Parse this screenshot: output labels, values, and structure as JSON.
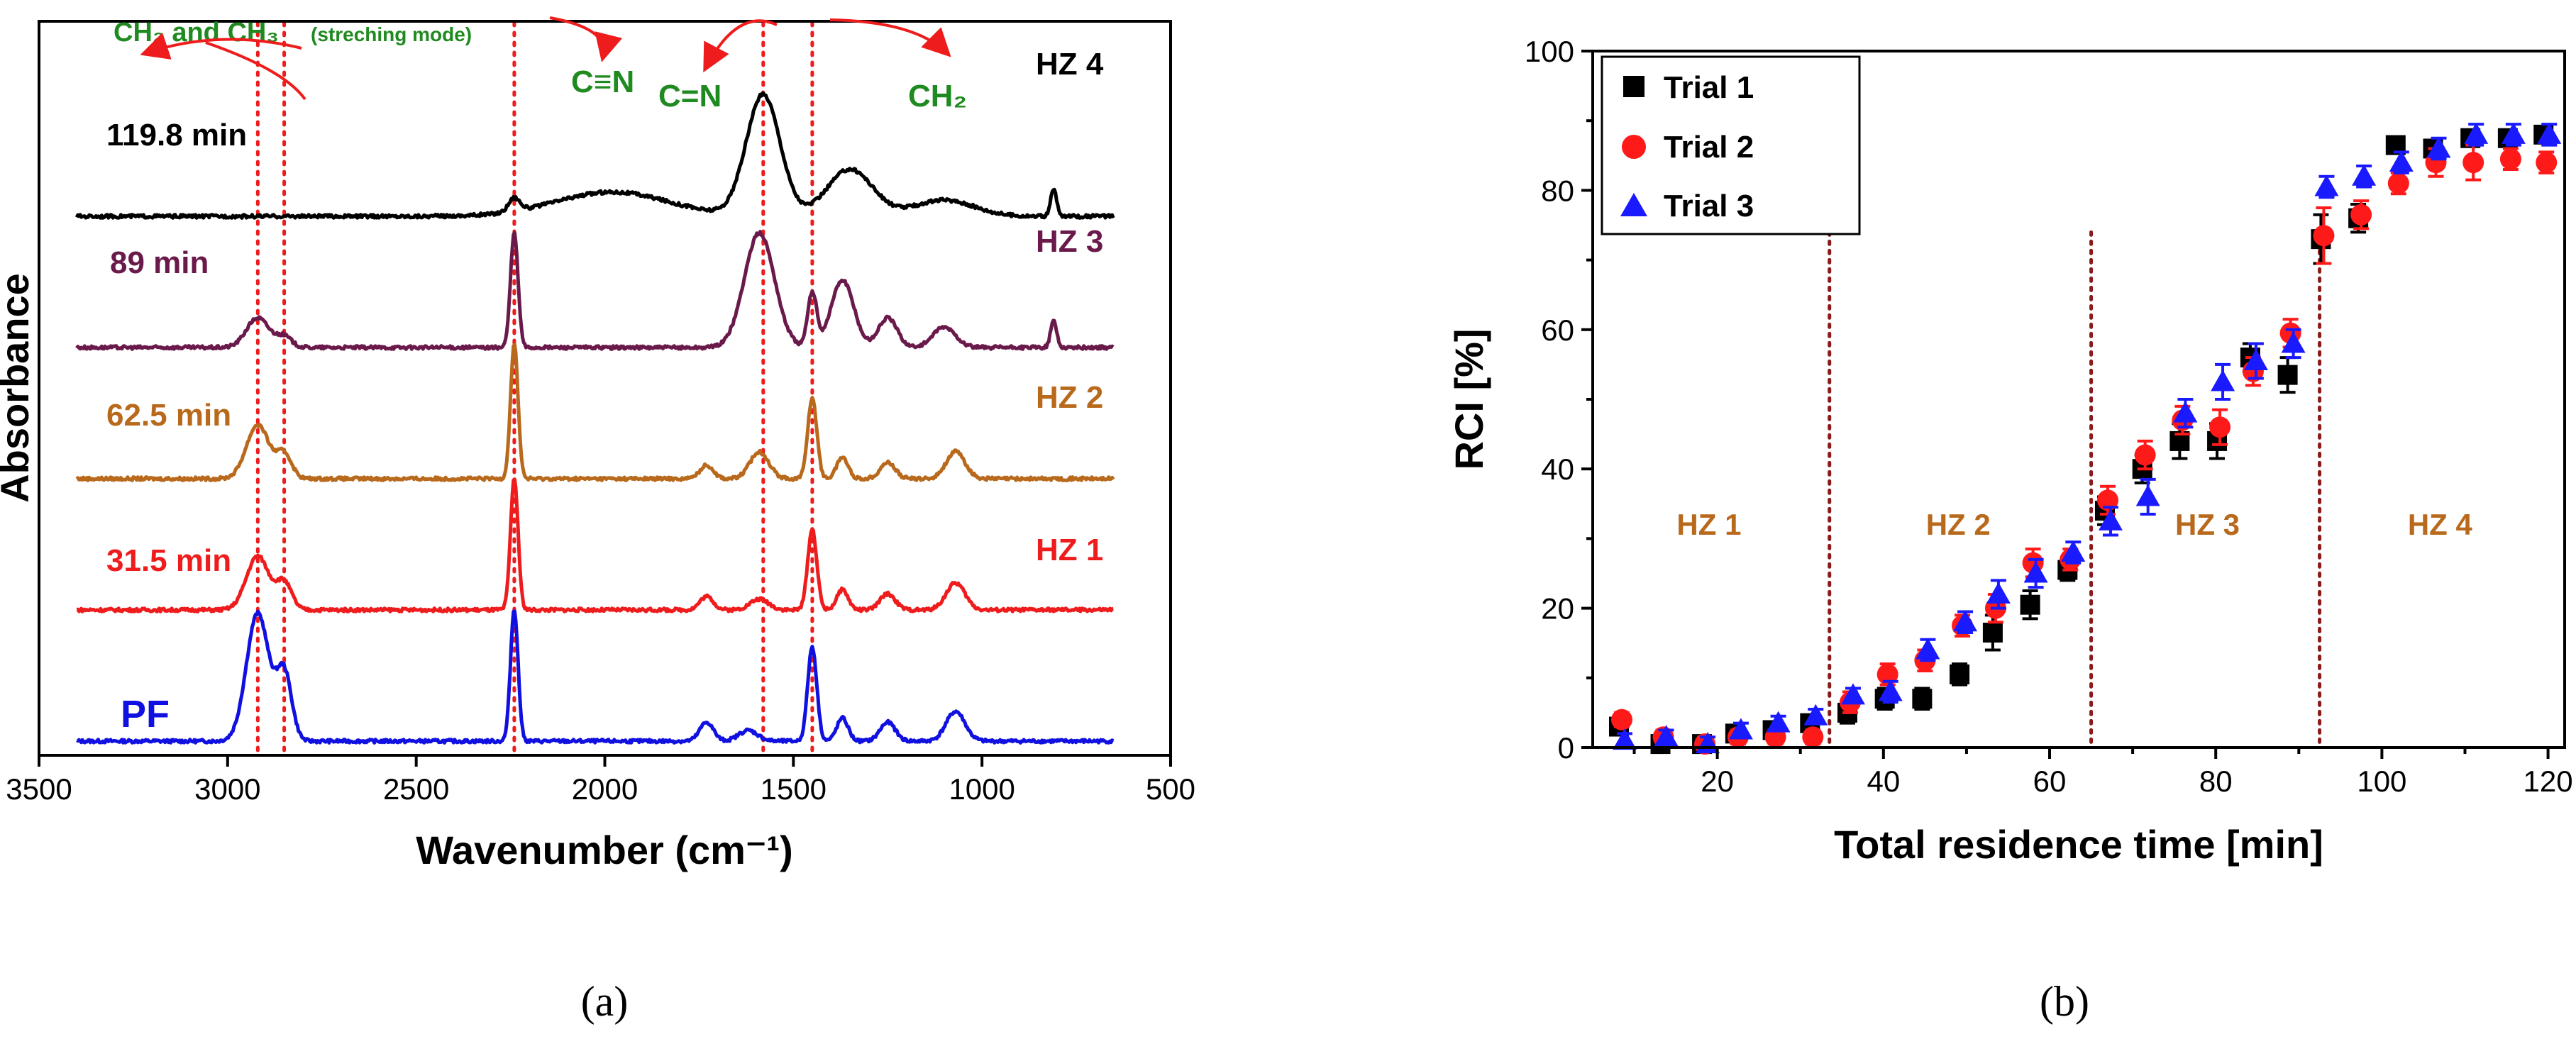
{
  "chart_data": [
    {
      "panel": "(a)",
      "type": "line",
      "xlabel": "Wavenumber (cm⁻¹)",
      "ylabel": "Absorbance",
      "xlim": [
        3500,
        500
      ],
      "x_ticks": [
        "3500",
        "3000",
        "2500",
        "2000",
        "1500",
        "1000",
        "500"
      ],
      "reference_lines_cm1": [
        2920,
        2850,
        2240,
        1580,
        1450
      ],
      "annotations": {
        "stretch_main": "CH₂ and CH₃",
        "stretch_mode": "(streching mode)",
        "cn_triple": "C≡N",
        "cn_double": "C=N",
        "ch2": "CH₂"
      },
      "series": [
        {
          "name": "PF",
          "label": "PF",
          "time_label": "",
          "color": "#1010e0",
          "baseline": 0.0,
          "peaks": [
            [
              2920,
              0.95,
              30
            ],
            [
              2850,
              0.5,
              20
            ],
            [
              2240,
              0.98,
              10
            ],
            [
              1730,
              0.14,
              18
            ],
            [
              1620,
              0.08,
              25
            ],
            [
              1450,
              0.7,
              12
            ],
            [
              1370,
              0.17,
              15
            ],
            [
              1250,
              0.14,
              20
            ],
            [
              1070,
              0.22,
              25
            ]
          ]
        },
        {
          "name": "HZ 1",
          "label": "HZ 1",
          "time_label": "31.5 min",
          "color": "#ee1c1c",
          "baseline": 1.0,
          "peaks": [
            [
              2920,
              0.4,
              30
            ],
            [
              2850,
              0.2,
              20
            ],
            [
              2240,
              0.98,
              10
            ],
            [
              1730,
              0.1,
              18
            ],
            [
              1590,
              0.08,
              25
            ],
            [
              1450,
              0.6,
              12
            ],
            [
              1370,
              0.15,
              15
            ],
            [
              1250,
              0.12,
              20
            ],
            [
              1070,
              0.2,
              25
            ]
          ]
        },
        {
          "name": "HZ 2",
          "label": "HZ 2",
          "time_label": "62.5 min",
          "color": "#b8691c",
          "baseline": 2.0,
          "peaks": [
            [
              2920,
              0.4,
              30
            ],
            [
              2850,
              0.18,
              20
            ],
            [
              2240,
              1.0,
              10
            ],
            [
              1730,
              0.1,
              18
            ],
            [
              1590,
              0.2,
              25
            ],
            [
              1450,
              0.6,
              12
            ],
            [
              1370,
              0.16,
              15
            ],
            [
              1250,
              0.12,
              20
            ],
            [
              1070,
              0.2,
              25
            ]
          ]
        },
        {
          "name": "HZ 3",
          "label": "HZ 3",
          "time_label": "89 min",
          "color": "#6a1a4a",
          "baseline": 3.0,
          "peaks": [
            [
              2920,
              0.22,
              30
            ],
            [
              2850,
              0.08,
              20
            ],
            [
              2240,
              0.85,
              10
            ],
            [
              1590,
              0.85,
              40
            ],
            [
              1450,
              0.4,
              12
            ],
            [
              1370,
              0.5,
              30
            ],
            [
              1250,
              0.22,
              25
            ],
            [
              1100,
              0.15,
              30
            ],
            [
              810,
              0.2,
              8
            ]
          ]
        },
        {
          "name": "HZ 4",
          "label": "HZ 4",
          "time_label": "119.8 min",
          "color": "#000000",
          "baseline": 4.0,
          "peaks": [
            [
              2240,
              0.1,
              15
            ],
            [
              1980,
              0.18,
              150
            ],
            [
              1580,
              0.9,
              45
            ],
            [
              1350,
              0.35,
              60
            ],
            [
              1100,
              0.12,
              80
            ],
            [
              810,
              0.2,
              8
            ]
          ]
        }
      ]
    },
    {
      "panel": "(b)",
      "type": "scatter",
      "xlabel": "Total residence time [min]",
      "ylabel": "RCI [%]",
      "xlim": [
        5,
        122
      ],
      "ylim": [
        0,
        100
      ],
      "x_ticks": [
        "20",
        "40",
        "60",
        "80",
        "100",
        "120"
      ],
      "y_ticks": [
        "0",
        "20",
        "40",
        "60",
        "80",
        "100"
      ],
      "zone_boundaries_min": [
        33.5,
        65,
        92.5
      ],
      "zone_labels": [
        "HZ 1",
        "HZ 2",
        "HZ 3",
        "HZ 4"
      ],
      "zone_label_x_min": [
        19,
        49,
        79,
        107
      ],
      "zone_label_y": 32,
      "series": [
        {
          "name": "Trial 1",
          "marker": "square",
          "color": "#000000",
          "x": [
            8.5,
            13.5,
            18.5,
            22.5,
            27,
            31.5,
            36,
            40.5,
            45,
            49.5,
            53.5,
            58,
            62.5,
            67,
            71.5,
            76,
            80.5,
            84.5,
            89,
            93,
            97.5,
            102,
            106.5,
            111,
            115.5,
            119.8
          ],
          "y": [
            3,
            0.5,
            0.5,
            2,
            2.5,
            3.5,
            5,
            7,
            7,
            10.5,
            16.5,
            20.5,
            25.5,
            34,
            40,
            44,
            44,
            56,
            53.5,
            73,
            76,
            86.5,
            86,
            87.5,
            87.5,
            88
          ],
          "err": [
            1,
            1,
            1,
            1,
            1,
            1,
            1.5,
            1.5,
            1.5,
            1.5,
            2.5,
            2,
            1.5,
            2,
            2,
            2.5,
            2.5,
            2,
            2.5,
            3.5,
            2,
            1,
            1,
            1,
            1,
            1
          ]
        },
        {
          "name": "Trial 2",
          "marker": "circle",
          "color": "#ff1a1a",
          "x": [
            8.5,
            13.5,
            18.5,
            22.5,
            27,
            31.5,
            36,
            40.5,
            45,
            49.5,
            53.5,
            58,
            62.5,
            67,
            71.5,
            76,
            80.5,
            84.5,
            89,
            93,
            97.5,
            102,
            106.5,
            111,
            115.5,
            119.8
          ],
          "y": [
            4,
            1.5,
            0.5,
            1.5,
            1.5,
            1.5,
            6.5,
            10.5,
            12.5,
            17.5,
            20,
            26.5,
            27,
            35.5,
            42,
            47,
            46,
            54,
            59.5,
            73.5,
            76.5,
            81,
            84,
            84,
            84.5,
            84
          ],
          "err": [
            1,
            1,
            1,
            1,
            1,
            1,
            1.5,
            1.5,
            1.5,
            1.5,
            2,
            2,
            1.5,
            2,
            2,
            2,
            2.5,
            2,
            2,
            4,
            2,
            1.5,
            2,
            2.5,
            1.5,
            1.5
          ]
        },
        {
          "name": "Trial 3",
          "marker": "triangle",
          "color": "#1a1aff",
          "x": [
            8.5,
            13.5,
            18.5,
            22.5,
            27,
            31.5,
            36,
            40.5,
            45,
            49.5,
            53.5,
            58,
            62.5,
            67,
            71.5,
            76,
            80.5,
            84.5,
            89,
            93,
            97.5,
            102,
            106.5,
            111,
            115.5,
            119.8
          ],
          "y": [
            1,
            1.5,
            0.5,
            2.5,
            3.5,
            4.5,
            7.5,
            8,
            14,
            18,
            22,
            25,
            28,
            32.5,
            36,
            48,
            52.5,
            55.5,
            58,
            80.5,
            82,
            84,
            86,
            88,
            88,
            88
          ],
          "err": [
            1,
            1,
            1,
            1,
            1,
            1,
            1,
            1.5,
            1.5,
            1.5,
            2,
            2,
            1.5,
            2,
            2.5,
            2,
            2.5,
            2.5,
            2,
            1.5,
            1.5,
            1.5,
            1.5,
            1.5,
            1.5,
            1.5
          ]
        }
      ]
    }
  ]
}
